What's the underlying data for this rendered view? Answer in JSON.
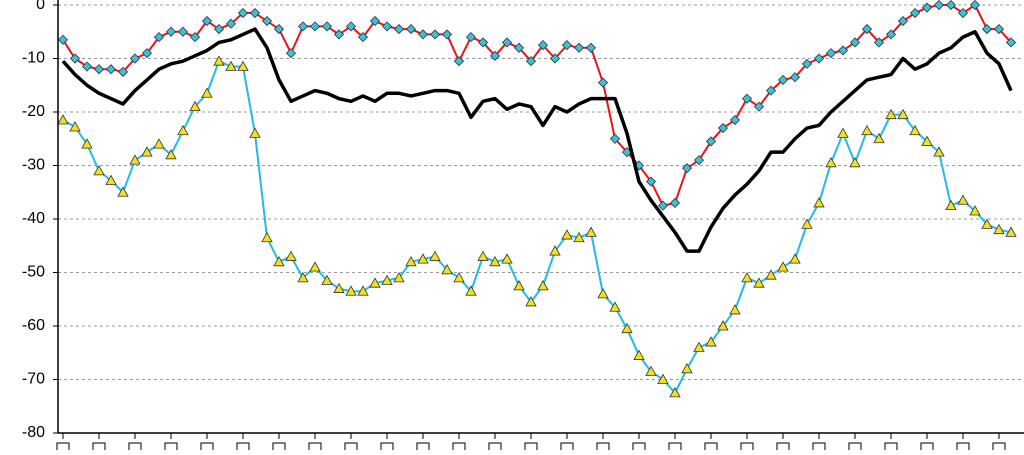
{
  "chart_data": {
    "type": "line",
    "categories": [
      null,
      null,
      null,
      null,
      null,
      null,
      null,
      null,
      null,
      null,
      null,
      null,
      null,
      null,
      null,
      null,
      null,
      null,
      null,
      null,
      null,
      null,
      null,
      null,
      null,
      null,
      null,
      null,
      null,
      null,
      null,
      null,
      null,
      null,
      null,
      null,
      null,
      null,
      null,
      null,
      null,
      null,
      null,
      null,
      null,
      null,
      null,
      null,
      null,
      null,
      null,
      null,
      null,
      null,
      null,
      null,
      null,
      null,
      null,
      null,
      null,
      null,
      null,
      null,
      null,
      null,
      null,
      null,
      null,
      null,
      null,
      null,
      null,
      null,
      null,
      null,
      null,
      null,
      null,
      null
    ],
    "ylim": [
      -80,
      0
    ],
    "yticks": [
      0,
      -10,
      -20,
      -30,
      -40,
      -50,
      -60,
      -70,
      -80
    ],
    "grid": true,
    "series": [
      {
        "color": "#e8141c",
        "marker": "diamond",
        "marker_color": "#3cc0d8",
        "values": [
          -6.5,
          -10,
          -11.5,
          -12,
          -12,
          -12.5,
          -10,
          -9,
          -6,
          -5,
          -5,
          -6,
          -3,
          -4.5,
          -3.5,
          -1.5,
          -1.5,
          -3,
          -4.5,
          -9,
          -4,
          -4,
          -4,
          -5.5,
          -4,
          -6,
          -3,
          -4,
          -4.5,
          -4.5,
          -5.5,
          -5.5,
          -5.5,
          -10.5,
          -6,
          -7,
          -9.5,
          -7,
          -8,
          -10.5,
          -7.5,
          -10,
          -7.5,
          -8,
          -8,
          -14.5,
          -25,
          -27.5,
          -30,
          -33,
          -37.5,
          -37,
          -30.5,
          -29,
          -25.5,
          -23,
          -21.5,
          -17.5,
          -19,
          -16,
          -14,
          -13.5,
          -11,
          -10,
          -9,
          -8.5,
          -7,
          -4.5,
          -7,
          -5.5,
          -3,
          -1.5,
          -0.5,
          0,
          0,
          -1.5,
          0,
          -4.5,
          -4.5,
          -7
        ]
      },
      {
        "color": "#000000",
        "values": [
          -10.5,
          -13,
          -15,
          -16.5,
          -17.5,
          -18.5,
          -16,
          -14,
          -12,
          -11,
          -10.5,
          -9.5,
          -8.5,
          -7,
          -6.5,
          -5.5,
          -4.5,
          -8,
          -14,
          -18,
          -17,
          -16,
          -16.5,
          -17.5,
          -18,
          -17,
          -18,
          -16.5,
          -16.5,
          -17,
          -16.5,
          -16,
          -16,
          -16.5,
          -21,
          -18,
          -17.5,
          -19.5,
          -18.5,
          -19,
          -22.5,
          -19,
          -20,
          -18.5,
          -17.5,
          -17.5,
          -17.5,
          -24,
          -33,
          -36.5,
          -39.5,
          -42.5,
          -46,
          -46,
          -41.5,
          -38,
          -35.5,
          -33.5,
          -31,
          -27.5,
          -27.5,
          -25,
          -23,
          -22.5,
          -20,
          -18,
          -16,
          -14,
          -13.5,
          -13,
          -10,
          -12,
          -11,
          -9,
          -8,
          -6,
          -5,
          -9,
          -11,
          -16
        ]
      },
      {
        "color": "#22bbe8",
        "marker": "triangle",
        "marker_color": "#f0e020",
        "values": [
          -21.5,
          -22.8,
          -26,
          -31,
          -32.8,
          -35,
          -29,
          -27.5,
          -26,
          -28,
          -23.5,
          -19,
          -16.5,
          -10.5,
          -11.5,
          -11.5,
          -24,
          -43.5,
          -48,
          -47,
          -51,
          -49,
          -51.5,
          -53,
          -53.5,
          -53.5,
          -52,
          -51.5,
          -51,
          -48,
          -47.5,
          -47,
          -49.5,
          -51,
          -53.5,
          -47,
          -48,
          -47.5,
          -52.5,
          -55.5,
          -52.5,
          -46,
          -43,
          -43.5,
          -42.5,
          -54,
          -56.5,
          -60.5,
          -65.5,
          -68.5,
          -70,
          -72.5,
          -68,
          -64,
          -63,
          -60,
          -57,
          -51,
          -52,
          -50.5,
          -49,
          -47.5,
          -41,
          -37,
          -29.5,
          -24,
          -29.5,
          -23.5,
          -25,
          -20.5,
          -20.5,
          -23.5,
          -25.5,
          -27.5,
          -37.5,
          -36.5,
          -38.5,
          -41,
          -42,
          -42.5
        ]
      }
    ]
  }
}
